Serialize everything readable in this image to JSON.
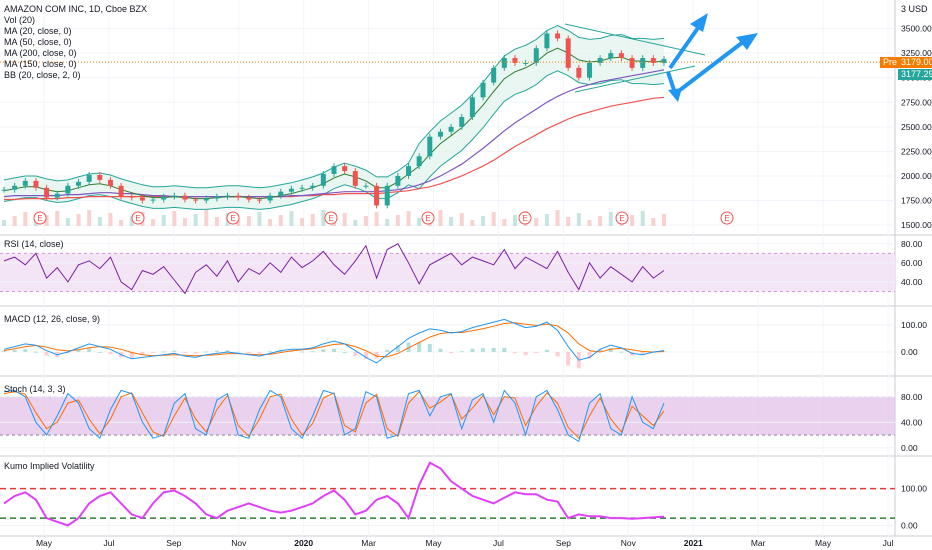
{
  "symbol_legend": {
    "title": "AMAZON COM INC, 1D, Cboe BZX",
    "lines": [
      "Vol (20)",
      "MA (20, close, 0)",
      "MA (50, close, 0)",
      "MA (200, close, 0)",
      "MA (150, close, 0)",
      "BB (20, close, 2, 0)"
    ]
  },
  "price_tags": {
    "usd_label": "3 USD",
    "pre_label": "Pre",
    "pre_value": "3179.00",
    "last_value": "3177.29"
  },
  "chart_data": {
    "type": "line",
    "x_axis_labels": [
      "May",
      "Jul",
      "Sep",
      "Nov",
      "2020",
      "Mar",
      "May",
      "Jul",
      "Sep",
      "Nov",
      "2021",
      "Mar",
      "May",
      "Jul"
    ],
    "panes": [
      {
        "name": "price",
        "y_ticks": [
          "3500.00",
          "3250.00",
          "3000.00",
          "2750.00",
          "2500.00",
          "2250.00",
          "2000.00",
          "1750.00",
          "1500.00"
        ],
        "ylim": [
          1450,
          3750
        ],
        "earnings_markers": [
          "E",
          "E",
          "E",
          "E",
          "E",
          "E",
          "E",
          "E"
        ],
        "close": [
          1860,
          1900,
          1950,
          1880,
          1780,
          1820,
          1900,
          1940,
          2010,
          1960,
          1900,
          1790,
          1780,
          1750,
          1760,
          1790,
          1800,
          1760,
          1750,
          1770,
          1790,
          1800,
          1780,
          1760,
          1750,
          1800,
          1840,
          1870,
          1880,
          1900,
          2020,
          2100,
          2050,
          1900,
          1900,
          1700,
          1900,
          2000,
          2100,
          2200,
          2400,
          2450,
          2500,
          2600,
          2800,
          2950,
          3100,
          3200,
          3150,
          3150,
          3300,
          3450,
          3400,
          3100,
          3000,
          3150,
          3200,
          3250,
          3200,
          3100,
          3200,
          3150,
          3190
        ],
        "ma50": [
          1850,
          1870,
          1890,
          1890,
          1860,
          1840,
          1850,
          1880,
          1910,
          1920,
          1900,
          1860,
          1830,
          1800,
          1780,
          1780,
          1790,
          1780,
          1770,
          1770,
          1780,
          1790,
          1790,
          1780,
          1770,
          1780,
          1800,
          1820,
          1850,
          1880,
          1920,
          1980,
          2020,
          1990,
          1950,
          1880,
          1880,
          1940,
          2020,
          2100,
          2220,
          2330,
          2410,
          2490,
          2600,
          2720,
          2860,
          2990,
          3060,
          3100,
          3160,
          3250,
          3300,
          3250,
          3180,
          3160,
          3170,
          3200,
          3210,
          3170,
          3170,
          3160,
          3170
        ],
        "ma150": [
          1790,
          1800,
          1800,
          1800,
          1800,
          1800,
          1810,
          1810,
          1820,
          1830,
          1830,
          1820,
          1820,
          1810,
          1800,
          1800,
          1790,
          1790,
          1790,
          1790,
          1790,
          1790,
          1790,
          1790,
          1790,
          1790,
          1790,
          1800,
          1800,
          1810,
          1820,
          1830,
          1840,
          1840,
          1840,
          1840,
          1850,
          1860,
          1880,
          1910,
          1950,
          2000,
          2060,
          2120,
          2200,
          2280,
          2370,
          2460,
          2540,
          2610,
          2680,
          2750,
          2810,
          2860,
          2900,
          2930,
          2960,
          2980,
          3000,
          3020,
          3040,
          3060,
          3080
        ],
        "ma200": [
          1760,
          1760,
          1770,
          1770,
          1770,
          1770,
          1780,
          1780,
          1790,
          1790,
          1790,
          1790,
          1790,
          1790,
          1790,
          1790,
          1790,
          1790,
          1790,
          1790,
          1790,
          1790,
          1790,
          1790,
          1790,
          1790,
          1790,
          1790,
          1800,
          1800,
          1810,
          1810,
          1820,
          1820,
          1820,
          1820,
          1830,
          1840,
          1850,
          1870,
          1890,
          1920,
          1960,
          2000,
          2050,
          2100,
          2160,
          2230,
          2300,
          2360,
          2420,
          2480,
          2530,
          2580,
          2620,
          2650,
          2680,
          2710,
          2730,
          2750,
          2770,
          2790,
          2800
        ]
      },
      {
        "name": "RSI (14, close)",
        "y_ticks": [
          "80.00",
          "60.00",
          "40.00"
        ],
        "ylim": [
          20,
          85
        ],
        "band": [
          30,
          70
        ],
        "values": [
          62,
          66,
          58,
          70,
          44,
          55,
          40,
          58,
          62,
          54,
          66,
          40,
          32,
          52,
          48,
          56,
          42,
          28,
          50,
          58,
          46,
          62,
          40,
          54,
          48,
          60,
          50,
          66,
          55,
          62,
          72,
          58,
          48,
          62,
          78,
          44,
          74,
          80,
          60,
          38,
          58,
          64,
          70,
          58,
          66,
          62,
          58,
          74,
          54,
          66,
          60,
          54,
          72,
          50,
          32,
          60,
          44,
          56,
          48,
          40,
          56,
          44,
          52
        ]
      },
      {
        "name": "MACD (12, 26, close, 9)",
        "y_ticks": [
          "100.00",
          "0.00"
        ],
        "ylim": [
          -70,
          140
        ],
        "macd": [
          10,
          20,
          30,
          25,
          5,
          -10,
          0,
          15,
          30,
          20,
          10,
          -10,
          -25,
          -20,
          -15,
          -10,
          -5,
          -15,
          -20,
          -10,
          -5,
          0,
          -5,
          -10,
          -15,
          -5,
          5,
          10,
          10,
          15,
          30,
          40,
          30,
          5,
          -20,
          -40,
          -10,
          20,
          50,
          70,
          85,
          80,
          70,
          75,
          90,
          100,
          110,
          120,
          105,
          90,
          95,
          110,
          80,
          20,
          -30,
          -20,
          10,
          25,
          15,
          -5,
          -10,
          0,
          5
        ],
        "signal": [
          5,
          12,
          20,
          24,
          18,
          8,
          4,
          8,
          16,
          20,
          18,
          10,
          -2,
          -10,
          -14,
          -12,
          -10,
          -12,
          -14,
          -12,
          -10,
          -6,
          -6,
          -8,
          -10,
          -8,
          -2,
          4,
          8,
          12,
          20,
          28,
          30,
          20,
          5,
          -15,
          -18,
          -5,
          15,
          35,
          55,
          68,
          72,
          72,
          78,
          86,
          95,
          105,
          108,
          102,
          98,
          102,
          96,
          70,
          30,
          5,
          0,
          10,
          14,
          8,
          2,
          0,
          2
        ]
      },
      {
        "name": "Stoch (14, 3, 3)",
        "y_ticks": [
          "80.00",
          "40.00",
          "0.00"
        ],
        "ylim": [
          -5,
          100
        ],
        "band": [
          20,
          80
        ],
        "k": [
          88,
          90,
          80,
          40,
          20,
          50,
          85,
          70,
          30,
          15,
          60,
          90,
          85,
          40,
          15,
          20,
          70,
          85,
          30,
          20,
          75,
          85,
          20,
          15,
          60,
          90,
          80,
          30,
          15,
          50,
          90,
          85,
          20,
          30,
          88,
          80,
          15,
          20,
          85,
          90,
          50,
          80,
          85,
          30,
          75,
          85,
          40,
          90,
          70,
          20,
          80,
          90,
          60,
          20,
          10,
          70,
          85,
          30,
          20,
          80,
          40,
          30,
          70
        ],
        "d": [
          85,
          88,
          84,
          55,
          30,
          40,
          70,
          75,
          45,
          22,
          45,
          80,
          86,
          55,
          25,
          18,
          50,
          78,
          45,
          25,
          60,
          82,
          35,
          18,
          45,
          80,
          84,
          45,
          20,
          38,
          78,
          86,
          35,
          25,
          70,
          84,
          30,
          18,
          70,
          88,
          62,
          72,
          84,
          45,
          62,
          82,
          52,
          80,
          78,
          35,
          65,
          86,
          70,
          32,
          15,
          50,
          78,
          45,
          25,
          65,
          50,
          35,
          58
        ]
      },
      {
        "name": "Kumo Implied Volatility",
        "y_ticks": [
          "100.00",
          "0.00"
        ],
        "ylim": [
          -15,
          175
        ],
        "upper_level": 100,
        "lower_level": 20,
        "values": [
          60,
          80,
          90,
          70,
          20,
          10,
          0,
          20,
          60,
          80,
          90,
          60,
          30,
          20,
          60,
          90,
          95,
          80,
          60,
          30,
          20,
          40,
          50,
          60,
          50,
          40,
          35,
          40,
          50,
          60,
          80,
          95,
          70,
          30,
          40,
          70,
          80,
          60,
          20,
          110,
          170,
          155,
          120,
          100,
          80,
          70,
          60,
          75,
          90,
          85,
          85,
          70,
          65,
          20,
          30,
          25,
          25,
          20,
          20,
          18,
          20,
          22,
          24
        ]
      }
    ]
  }
}
